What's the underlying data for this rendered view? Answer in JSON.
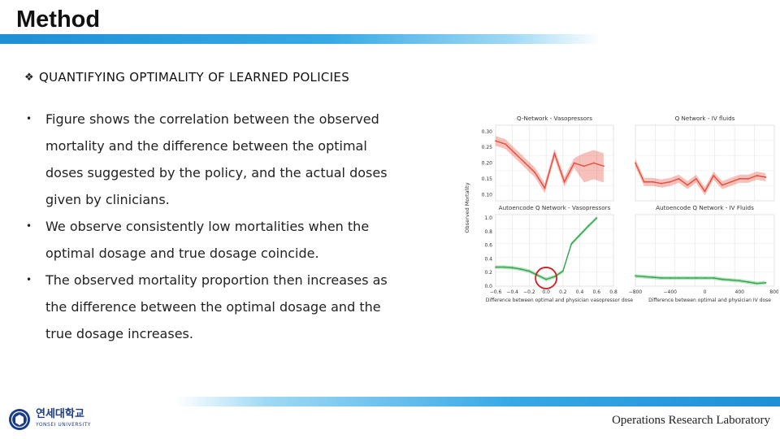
{
  "slide": {
    "title": "Method",
    "section_marker": "❖",
    "section_heading": "QUANTIFYING OPTIMALITY OF LEARNED POLICIES",
    "bullets": [
      "Figure shows the correlation between the observed mortality and the difference between the optimal doses suggested by the policy, and the actual doses given by clinicians.",
      "We observe consistently low mortalities when the optimal dosage and true dosage coincide.",
      "The observed mortality proportion then increases as the difference between the optimal dosage and the true dosage increases."
    ],
    "footer_lab": "Operations Research Laboratory",
    "logo": {
      "korean": "연세대학교",
      "english": "YONSEI UNIVERSITY",
      "icon": "university-seal-icon"
    },
    "colors": {
      "accent_blue": "#1f8fd6",
      "top_line": "#e74c3c",
      "bottom_line": "#2ea84a",
      "highlight_circle": "#cc1f1f"
    }
  },
  "chart_data": [
    {
      "type": "line",
      "title": "Q-Network - Vasopressors",
      "ylabel": "Observed Mortality",
      "yticks": [
        "0.30",
        "0.25",
        "0.20",
        "0.15",
        "0.10"
      ],
      "ylim": [
        0.08,
        0.32
      ],
      "xlim": [
        -0.6,
        0.6
      ],
      "series": [
        {
          "x": [
            -0.6,
            -0.5,
            -0.4,
            -0.3,
            -0.2,
            -0.1,
            0.0,
            0.1,
            0.2,
            0.3,
            0.4,
            0.5
          ],
          "y": [
            0.27,
            0.26,
            0.23,
            0.2,
            0.17,
            0.12,
            0.23,
            0.14,
            0.2,
            0.19,
            0.2,
            0.19
          ]
        }
      ]
    },
    {
      "type": "line",
      "title": "Q Network - IV fluids",
      "ylim": [
        0.08,
        0.32
      ],
      "xlim": [
        -800,
        800
      ],
      "series": [
        {
          "x": [
            -800,
            -700,
            -600,
            -500,
            -400,
            -300,
            -200,
            -100,
            0,
            100,
            200,
            300,
            400,
            500,
            600,
            700
          ],
          "y": [
            0.2,
            0.14,
            0.14,
            0.135,
            0.14,
            0.15,
            0.13,
            0.15,
            0.11,
            0.16,
            0.13,
            0.14,
            0.15,
            0.15,
            0.16,
            0.155
          ]
        }
      ]
    },
    {
      "type": "line",
      "title": "Autoencode Q Network - Vasopressors",
      "yticks": [
        "1.0",
        "0.8",
        "0.6",
        "0.4",
        "0.2",
        "0.0"
      ],
      "xticks": [
        "-0.6",
        "-0.4",
        "-0.2",
        "0.0",
        "0.2",
        "0.4",
        "0.6",
        "0.8"
      ],
      "xlabel": "Difference between optimal and physician vasopressor dose",
      "ylim": [
        0,
        1.05
      ],
      "xlim": [
        -0.6,
        0.8
      ],
      "series": [
        {
          "x": [
            -0.6,
            -0.5,
            -0.4,
            -0.3,
            -0.2,
            -0.1,
            0.0,
            0.1,
            0.2,
            0.3,
            0.4,
            0.5,
            0.6
          ],
          "y": [
            0.28,
            0.28,
            0.27,
            0.25,
            0.22,
            0.16,
            0.1,
            0.14,
            0.22,
            0.62,
            0.75,
            0.88,
            1.0
          ]
        }
      ]
    },
    {
      "type": "line",
      "title": "Autoencode Q Network - IV Fluids",
      "xticks": [
        "-800",
        "-400",
        "0",
        "400",
        "800"
      ],
      "xlabel": "Difference between optimal and physician IV dose",
      "ylim": [
        0,
        1.05
      ],
      "xlim": [
        -800,
        800
      ],
      "series": [
        {
          "x": [
            -800,
            -700,
            -600,
            -500,
            -400,
            -300,
            -200,
            -100,
            0,
            100,
            200,
            300,
            400,
            500,
            600,
            700
          ],
          "y": [
            0.15,
            0.14,
            0.13,
            0.12,
            0.12,
            0.12,
            0.12,
            0.12,
            0.12,
            0.12,
            0.1,
            0.09,
            0.08,
            0.06,
            0.04,
            0.05
          ]
        }
      ]
    }
  ]
}
